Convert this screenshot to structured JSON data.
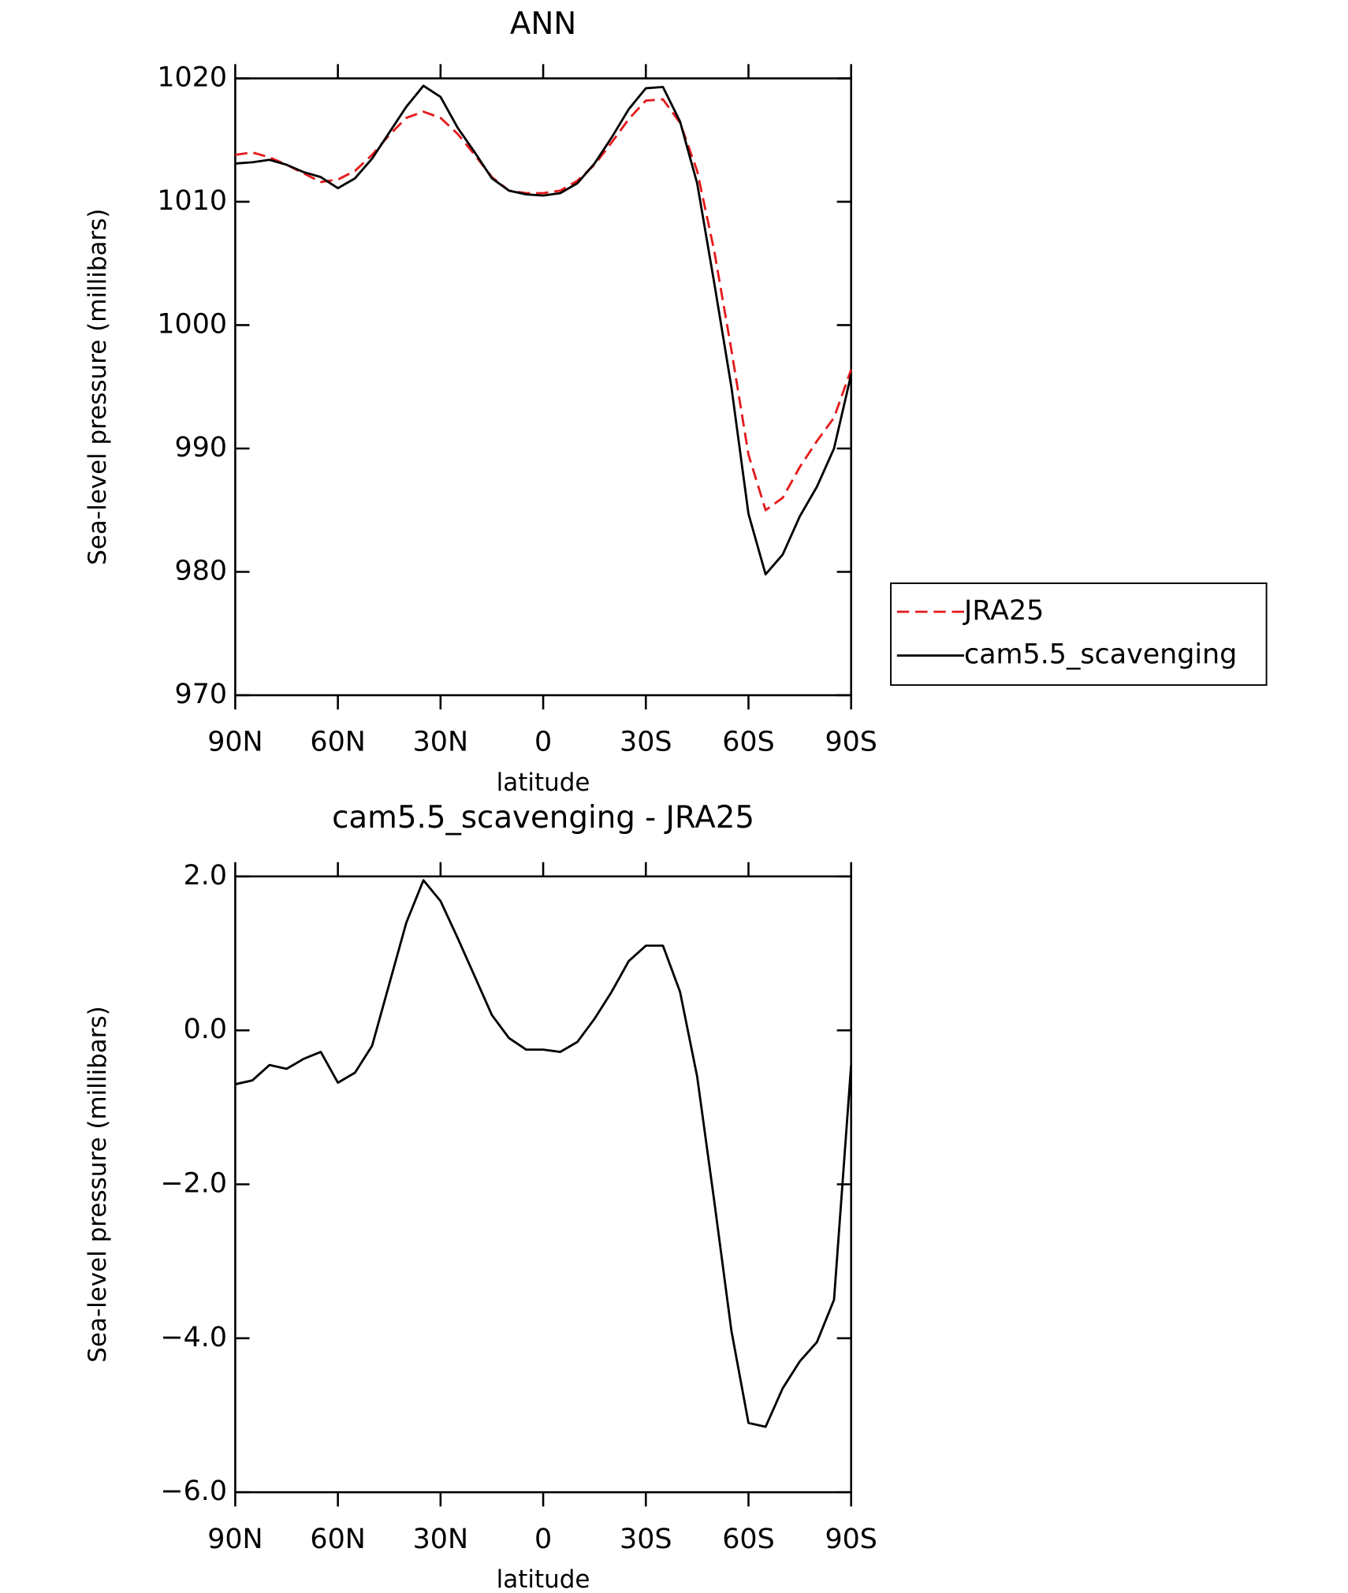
{
  "chart_data": [
    {
      "type": "line",
      "title": "ANN",
      "xlabel": "latitude",
      "ylabel": "Sea-level pressure (millibars)",
      "x": [
        90,
        85,
        80,
        75,
        70,
        65,
        60,
        55,
        50,
        45,
        40,
        35,
        30,
        25,
        20,
        15,
        10,
        5,
        0,
        -5,
        -10,
        -15,
        -20,
        -25,
        -30,
        -35,
        -40,
        -45,
        -50,
        -55,
        -60,
        -65,
        -70,
        -75,
        -80,
        -85,
        -90
      ],
      "series": [
        {
          "name": "JRA25",
          "color": "#e41a1c",
          "dash": true,
          "values": [
            1013.8,
            1014.0,
            1013.6,
            1013.0,
            1012.3,
            1011.6,
            1011.8,
            1012.5,
            1013.8,
            1015.4,
            1016.8,
            1017.3,
            1016.8,
            1015.5,
            1013.8,
            1012.0,
            1010.9,
            1010.7,
            1010.7,
            1010.9,
            1011.7,
            1013.0,
            1014.8,
            1016.7,
            1018.2,
            1018.3,
            1016.4,
            1012.5,
            1006.0,
            998.0,
            989.5,
            985.0,
            986.0,
            988.5,
            990.6,
            992.5,
            996.4
          ]
        },
        {
          "name": "cam5.5_scavenging",
          "color": "#000000",
          "dash": false,
          "values": [
            1013.1,
            1013.2,
            1013.4,
            1013.0,
            1012.4,
            1012.0,
            1011.1,
            1011.9,
            1013.5,
            1015.6,
            1017.7,
            1019.4,
            1018.5,
            1016.0,
            1014.0,
            1011.9,
            1010.9,
            1010.6,
            1010.5,
            1010.7,
            1011.5,
            1013.1,
            1015.2,
            1017.5,
            1019.2,
            1019.3,
            1016.5,
            1011.5,
            1003.4,
            995.0,
            984.7,
            979.8,
            981.4,
            984.5,
            986.9,
            990.0,
            996.0
          ]
        }
      ],
      "xlim": [
        90,
        -90
      ],
      "xticks": [
        {
          "value": 90,
          "label": "90N"
        },
        {
          "value": 60,
          "label": "60N"
        },
        {
          "value": 30,
          "label": "30N"
        },
        0,
        {
          "value": -30,
          "label": "30S"
        },
        {
          "value": -60,
          "label": "60S"
        },
        {
          "value": -90,
          "label": "90S"
        }
      ],
      "ylim": [
        970,
        1020
      ],
      "yticks": [
        970,
        980,
        990,
        1000,
        1010,
        1020
      ],
      "legend": "right"
    },
    {
      "type": "line",
      "title": "cam5.5_scavenging - JRA25",
      "xlabel": "latitude",
      "ylabel": "Sea-level pressure (millibars)",
      "x": [
        90,
        85,
        80,
        75,
        70,
        65,
        60,
        55,
        50,
        45,
        40,
        35,
        30,
        25,
        20,
        15,
        10,
        5,
        0,
        -5,
        -10,
        -15,
        -20,
        -25,
        -30,
        -35,
        -40,
        -45,
        -50,
        -55,
        -60,
        -65,
        -70,
        -75,
        -80,
        -85,
        -90
      ],
      "color": "#000000",
      "values": [
        -0.7,
        -0.65,
        -0.45,
        -0.5,
        -0.37,
        -0.28,
        -0.68,
        -0.55,
        -0.2,
        0.6,
        1.4,
        1.95,
        1.68,
        1.2,
        0.7,
        0.2,
        -0.1,
        -0.25,
        -0.25,
        -0.28,
        -0.15,
        0.15,
        0.5,
        0.9,
        1.1,
        1.1,
        0.5,
        -0.6,
        -2.22,
        -3.9,
        -5.1,
        -5.15,
        -4.65,
        -4.3,
        -4.05,
        -3.5,
        -0.45
      ],
      "xlim": [
        90,
        -90
      ],
      "xticks": [
        {
          "value": 90,
          "label": "90N"
        },
        {
          "value": 60,
          "label": "60N"
        },
        {
          "value": 30,
          "label": "30N"
        },
        0,
        {
          "value": -30,
          "label": "30S"
        },
        {
          "value": -60,
          "label": "60S"
        },
        {
          "value": -90,
          "label": "90S"
        }
      ],
      "ylim": [
        -6,
        2
      ],
      "yticks": [
        {
          "value": -6,
          "label": "−6.0"
        },
        {
          "value": -4,
          "label": "−4.0"
        },
        {
          "value": -2,
          "label": "−2.0"
        },
        {
          "value": 0,
          "label": "0.0"
        },
        {
          "value": 2,
          "label": "2.0"
        }
      ]
    }
  ]
}
